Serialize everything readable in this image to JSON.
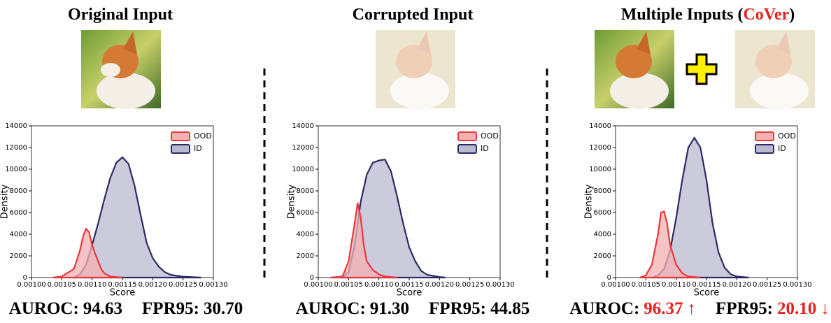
{
  "chart_data": [
    {
      "type": "area",
      "title": "Original Input",
      "xlabel": "Score",
      "ylabel": "Density",
      "xlim": [
        0.001,
        0.0013
      ],
      "xticks": [
        {
          "value": 0.001,
          "label": "0.00100"
        },
        {
          "value": 0.00105,
          "label": "0.00105"
        },
        {
          "value": 0.0011,
          "label": "0.00110"
        },
        {
          "value": 0.00115,
          "label": "0.00115"
        },
        {
          "value": 0.0012,
          "label": "0.00120"
        },
        {
          "value": 0.00125,
          "label": "0.00125"
        },
        {
          "value": 0.0013,
          "label": "0.00130"
        }
      ],
      "ylim": [
        0,
        14000
      ],
      "yticks": [
        0,
        2000,
        4000,
        6000,
        8000,
        10000,
        12000,
        14000
      ],
      "series": [
        {
          "name": "OOD",
          "color": "#e8383d",
          "fill": "#f4b0b2",
          "x": [
            0.001035,
            0.00105,
            0.00107,
            0.00108,
            0.001085,
            0.00109,
            0.001095,
            0.0011,
            0.001105,
            0.00111,
            0.001115,
            0.00112,
            0.00113,
            0.00115
          ],
          "values": [
            0,
            100,
            800,
            2500,
            3800,
            4500,
            4200,
            3000,
            2200,
            1500,
            800,
            400,
            100,
            0
          ]
        },
        {
          "name": "ID",
          "color": "#2a2c63",
          "fill": "#b9b9cf",
          "x": [
            0.00107,
            0.00108,
            0.00109,
            0.0011,
            0.00111,
            0.00112,
            0.00113,
            0.00114,
            0.00115,
            0.00116,
            0.00117,
            0.00118,
            0.00119,
            0.0012,
            0.00121,
            0.00122,
            0.00123,
            0.00125,
            0.00128
          ],
          "values": [
            0,
            300,
            1200,
            3000,
            5000,
            7200,
            9200,
            10600,
            11100,
            10500,
            8500,
            5800,
            3200,
            1800,
            1000,
            500,
            250,
            80,
            0
          ]
        }
      ],
      "metrics": [
        {
          "label": "AUROC:",
          "value": "94.63"
        },
        {
          "label": "FPR95:",
          "value": "30.70"
        }
      ]
    },
    {
      "type": "area",
      "title": "Corrupted Input",
      "xlabel": "Score",
      "ylabel": "Density",
      "xlim": [
        0.001,
        0.0013
      ],
      "xticks": [
        {
          "value": 0.001,
          "label": "0.00100"
        },
        {
          "value": 0.00105,
          "label": "0.00105"
        },
        {
          "value": 0.0011,
          "label": "0.00110"
        },
        {
          "value": 0.00115,
          "label": "0.00115"
        },
        {
          "value": 0.0012,
          "label": "0.00120"
        },
        {
          "value": 0.00125,
          "label": "0.00125"
        },
        {
          "value": 0.0013,
          "label": "0.00130"
        }
      ],
      "ylim": [
        0,
        14000
      ],
      "yticks": [
        0,
        2000,
        4000,
        6000,
        8000,
        10000,
        12000,
        14000
      ],
      "series": [
        {
          "name": "OOD",
          "color": "#e8383d",
          "fill": "#f4b0b2",
          "x": [
            0.00102,
            0.00104,
            0.00105,
            0.00106,
            0.001065,
            0.00107,
            0.001075,
            0.00108,
            0.00109,
            0.0011,
            0.00111,
            0.00113
          ],
          "values": [
            0,
            100,
            1500,
            5000,
            6900,
            5500,
            3000,
            1500,
            700,
            300,
            100,
            0
          ]
        },
        {
          "name": "ID",
          "color": "#2a2c63",
          "fill": "#b9b9cf",
          "x": [
            0.00104,
            0.00105,
            0.00106,
            0.00107,
            0.00108,
            0.00109,
            0.0011,
            0.00111,
            0.00112,
            0.00113,
            0.00114,
            0.00115,
            0.00116,
            0.00117,
            0.00118,
            0.0012,
            0.00121
          ],
          "values": [
            0,
            500,
            3000,
            7000,
            9500,
            10600,
            10800,
            10900,
            9800,
            7500,
            5000,
            2800,
            1500,
            600,
            250,
            50,
            0
          ]
        }
      ],
      "metrics": [
        {
          "label": "AUROC:",
          "value": "91.30"
        },
        {
          "label": "FPR95:",
          "value": "44.85"
        }
      ]
    },
    {
      "type": "area",
      "title": "Multiple Inputs (",
      "title_highlight": "CoVer",
      "title_end": ")",
      "xlabel": "Score",
      "ylabel": "Density",
      "xlim": [
        0.001,
        0.0013
      ],
      "xticks": [
        {
          "value": 0.001,
          "label": "0.00100"
        },
        {
          "value": 0.00105,
          "label": "0.00105"
        },
        {
          "value": 0.0011,
          "label": "0.00110"
        },
        {
          "value": 0.00115,
          "label": "0.00115"
        },
        {
          "value": 0.0012,
          "label": "0.00120"
        },
        {
          "value": 0.00125,
          "label": "0.00125"
        },
        {
          "value": 0.0013,
          "label": "0.00130"
        }
      ],
      "ylim": [
        0,
        14000
      ],
      "yticks": [
        0,
        2000,
        4000,
        6000,
        8000,
        10000,
        12000,
        14000
      ],
      "series": [
        {
          "name": "OOD",
          "color": "#e8383d",
          "fill": "#f4b0b2",
          "x": [
            0.00104,
            0.00105,
            0.00106,
            0.00107,
            0.001075,
            0.00108,
            0.001085,
            0.00109,
            0.0011,
            0.00111,
            0.00112,
            0.00114
          ],
          "values": [
            0,
            200,
            1200,
            4000,
            6000,
            6100,
            5000,
            3000,
            1200,
            400,
            100,
            0
          ]
        },
        {
          "name": "ID",
          "color": "#2a2c63",
          "fill": "#b9b9cf",
          "x": [
            0.00106,
            0.00107,
            0.00108,
            0.00109,
            0.0011,
            0.00111,
            0.00112,
            0.00113,
            0.00114,
            0.00115,
            0.00116,
            0.00117,
            0.00118,
            0.00119,
            0.0012,
            0.00122
          ],
          "values": [
            0,
            200,
            800,
            2500,
            5500,
            9000,
            12000,
            12900,
            12000,
            9000,
            5000,
            2300,
            900,
            300,
            100,
            0
          ]
        }
      ],
      "highlight_color": "#e8211c",
      "metrics": [
        {
          "label": "AUROC:",
          "value": "96.37",
          "arrow": "↑"
        },
        {
          "label": "FPR95:",
          "value": "20.10",
          "arrow": "↓"
        }
      ]
    }
  ]
}
